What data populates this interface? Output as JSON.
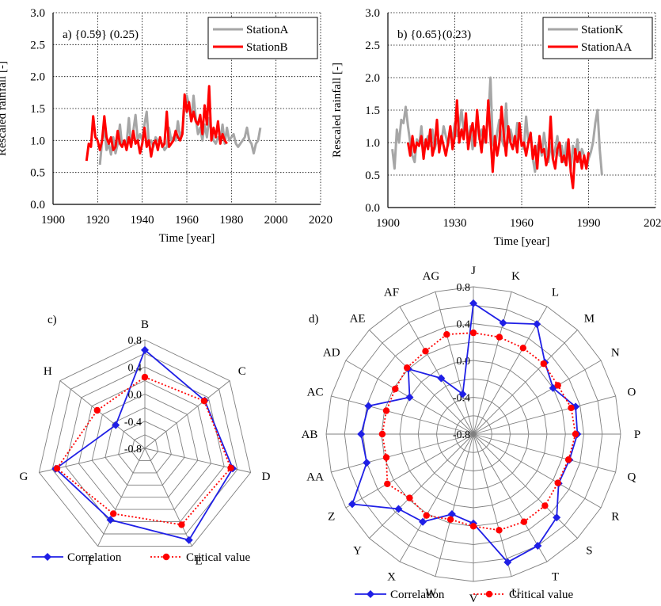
{
  "colors": {
    "gray": "#a6a6a6",
    "red": "#ff0000",
    "blue": "#1f1fe6",
    "black": "#000000"
  },
  "chart_data": [
    {
      "id": "a",
      "type": "line",
      "annotation": "a) {0.59} (0.25)",
      "xlabel": "Time [year]",
      "ylabel": "Rescaled rainfall [-]",
      "xlim": [
        1900,
        2020
      ],
      "ylim": [
        0.0,
        3.0
      ],
      "xticks": [
        "1900",
        "1920",
        "1940",
        "1960",
        "1980",
        "2000",
        "2020"
      ],
      "yticks": [
        "0.0",
        "0.5",
        "1.0",
        "1.5",
        "2.0",
        "2.5",
        "3.0"
      ],
      "grid": true,
      "legend": "top-right",
      "series": [
        {
          "name": "StationA",
          "color": "#a6a6a6",
          "x": [
            1921,
            1922,
            1923,
            1924,
            1925,
            1926,
            1927,
            1928,
            1929,
            1930,
            1931,
            1932,
            1933,
            1934,
            1935,
            1936,
            1937,
            1938,
            1939,
            1940,
            1941,
            1942,
            1943,
            1944,
            1945,
            1946,
            1947,
            1948,
            1949,
            1950,
            1951,
            1952,
            1953,
            1954,
            1955,
            1956,
            1957,
            1958,
            1959,
            1960,
            1961,
            1962,
            1963,
            1964,
            1965,
            1966,
            1967,
            1968,
            1969,
            1970,
            1971,
            1972,
            1973,
            1974,
            1975,
            1976,
            1977,
            1978,
            1979,
            1980,
            1981,
            1982,
            1983,
            1984,
            1985,
            1986,
            1987,
            1988,
            1989,
            1990,
            1991,
            1992,
            1993
          ],
          "y": [
            0.62,
            1.0,
            1.2,
            0.85,
            0.95,
            0.78,
            1.05,
            0.8,
            0.95,
            1.25,
            0.9,
            1.0,
            0.95,
            1.35,
            0.9,
            1.15,
            1.4,
            1.0,
            1.1,
            1.0,
            1.25,
            1.45,
            0.95,
            1.0,
            0.9,
            1.05,
            1.0,
            1.0,
            0.95,
            0.85,
            0.9,
            1.2,
            1.0,
            1.05,
            1.0,
            1.3,
            1.05,
            1.15,
            1.55,
            1.7,
            1.55,
            1.3,
            1.7,
            1.35,
            1.1,
            1.2,
            1.0,
            1.25,
            1.05,
            1.35,
            1.15,
            1.0,
            0.95,
            1.05,
            1.0,
            1.25,
            0.95,
            1.2,
            1.0,
            1.05,
            1.1,
            0.95,
            0.9,
            0.95,
            1.0,
            1.05,
            1.2,
            1.0,
            0.95,
            0.8,
            0.95,
            1.0,
            1.2
          ]
        },
        {
          "name": "StationB",
          "color": "#ff0000",
          "x": [
            1915,
            1916,
            1917,
            1918,
            1919,
            1920,
            1921,
            1922,
            1923,
            1924,
            1925,
            1926,
            1927,
            1928,
            1929,
            1930,
            1931,
            1932,
            1933,
            1934,
            1935,
            1936,
            1937,
            1938,
            1939,
            1940,
            1941,
            1942,
            1943,
            1944,
            1945,
            1946,
            1947,
            1948,
            1949,
            1950,
            1951,
            1952,
            1953,
            1954,
            1955,
            1956,
            1957,
            1958,
            1959,
            1960,
            1961,
            1962,
            1963,
            1964,
            1965,
            1966,
            1967,
            1968,
            1969,
            1970,
            1971,
            1972,
            1973,
            1974,
            1975,
            1976,
            1977,
            1978
          ],
          "y": [
            0.68,
            0.95,
            0.9,
            1.38,
            1.05,
            1.0,
            0.85,
            1.0,
            1.38,
            1.05,
            0.95,
            1.05,
            0.85,
            0.9,
            1.15,
            0.95,
            0.9,
            1.0,
            0.85,
            1.05,
            0.9,
            1.15,
            0.95,
            1.0,
            0.8,
            0.95,
            1.2,
            0.9,
            1.0,
            0.75,
            0.95,
            1.0,
            0.85,
            1.05,
            0.9,
            0.95,
            1.45,
            0.9,
            0.95,
            1.0,
            1.15,
            1.05,
            1.0,
            1.1,
            1.72,
            1.45,
            1.6,
            1.3,
            1.45,
            1.3,
            1.25,
            1.4,
            1.1,
            1.55,
            1.25,
            1.85,
            1.0,
            1.2,
            1.05,
            1.3,
            0.95,
            1.1,
            1.0,
            0.95
          ]
        }
      ]
    },
    {
      "id": "b",
      "type": "line",
      "annotation": "b) {0.65}(0.23)",
      "xlabel": "Time [year]",
      "ylabel": "Rescaled rainfall [-]",
      "xlim": [
        1900,
        2020
      ],
      "ylim": [
        0.0,
        3.0
      ],
      "xticks": [
        "1900",
        "1930",
        "1960",
        "1990",
        "2020"
      ],
      "yticks": [
        "0.0",
        "0.5",
        "1.0",
        "1.5",
        "2.0",
        "2.5",
        "3.0"
      ],
      "grid": true,
      "legend": "top-right",
      "series": [
        {
          "name": "StationK",
          "color": "#a6a6a6",
          "x": [
            1902,
            1903,
            1904,
            1905,
            1906,
            1907,
            1908,
            1909,
            1910,
            1911,
            1912,
            1913,
            1914,
            1915,
            1916,
            1917,
            1918,
            1919,
            1920,
            1921,
            1922,
            1923,
            1924,
            1925,
            1926,
            1927,
            1928,
            1929,
            1930,
            1931,
            1932,
            1933,
            1934,
            1935,
            1936,
            1937,
            1938,
            1939,
            1940,
            1941,
            1942,
            1943,
            1944,
            1945,
            1946,
            1947,
            1948,
            1949,
            1950,
            1951,
            1952,
            1953,
            1954,
            1955,
            1956,
            1957,
            1958,
            1959,
            1960,
            1961,
            1962,
            1963,
            1964,
            1965,
            1966,
            1967,
            1968,
            1969,
            1970,
            1971,
            1972,
            1973,
            1974,
            1975,
            1976,
            1977,
            1978,
            1979,
            1980,
            1981,
            1982,
            1983,
            1984,
            1985,
            1986,
            1987,
            1988,
            1989,
            1990,
            1991,
            1992,
            1993,
            1994,
            1995,
            1996
          ],
          "y": [
            0.9,
            0.6,
            1.2,
            1.0,
            1.35,
            1.3,
            1.55,
            1.25,
            1.0,
            0.8,
            0.7,
            1.05,
            0.95,
            1.25,
            0.85,
            1.0,
            1.1,
            0.95,
            1.2,
            0.9,
            1.05,
            0.95,
            1.0,
            1.25,
            1.1,
            0.95,
            1.2,
            1.05,
            1.3,
            1.1,
            1.25,
            1.5,
            1.15,
            1.3,
            1.0,
            1.25,
            0.9,
            1.1,
            1.35,
            1.05,
            1.2,
            1.0,
            1.15,
            1.35,
            2.0,
            1.0,
            0.9,
            1.15,
            1.35,
            1.05,
            0.95,
            1.6,
            1.0,
            1.2,
            1.05,
            0.95,
            1.3,
            1.1,
            1.0,
            0.9,
            1.4,
            1.0,
            1.15,
            0.75,
            0.55,
            0.95,
            1.0,
            0.8,
            1.15,
            0.9,
            0.7,
            1.0,
            0.75,
            0.9,
            1.1,
            0.8,
            0.95,
            0.7,
            1.0,
            0.85,
            0.6,
            0.95,
            0.8,
            1.05,
            0.7,
            0.9,
            0.8,
            0.6,
            0.75,
            0.85,
            1.0,
            1.3,
            1.5,
            0.9,
            0.5
          ]
        },
        {
          "name": "StationAA",
          "color": "#ff0000",
          "x": [
            1909,
            1910,
            1911,
            1912,
            1913,
            1914,
            1915,
            1916,
            1917,
            1918,
            1919,
            1920,
            1921,
            1922,
            1923,
            1924,
            1925,
            1926,
            1927,
            1928,
            1929,
            1930,
            1931,
            1932,
            1933,
            1934,
            1935,
            1936,
            1937,
            1938,
            1939,
            1940,
            1941,
            1942,
            1943,
            1944,
            1945,
            1946,
            1947,
            1948,
            1949,
            1950,
            1951,
            1952,
            1953,
            1954,
            1955,
            1956,
            1957,
            1958,
            1959,
            1960,
            1961,
            1962,
            1963,
            1964,
            1965,
            1966,
            1967,
            1968,
            1969,
            1970,
            1971,
            1972,
            1973,
            1974,
            1975,
            1976,
            1977,
            1978,
            1979,
            1980,
            1981,
            1982,
            1983,
            1984,
            1985,
            1986,
            1987,
            1988,
            1989,
            1990
          ],
          "y": [
            1.0,
            0.8,
            1.1,
            0.85,
            1.0,
            0.95,
            1.1,
            0.75,
            1.05,
            0.9,
            1.2,
            0.8,
            0.95,
            1.35,
            0.85,
            1.1,
            0.95,
            0.8,
            1.0,
            1.25,
            0.9,
            1.1,
            1.65,
            1.0,
            1.2,
            1.05,
            1.45,
            0.9,
            1.15,
            1.3,
            0.95,
            1.5,
            1.1,
            0.85,
            1.25,
            1.0,
            1.65,
            1.1,
            0.55,
            1.1,
            0.8,
            1.0,
            1.55,
            1.1,
            0.8,
            1.25,
            1.0,
            0.9,
            1.1,
            0.85,
            1.3,
            0.95,
            1.0,
            0.8,
            1.0,
            1.15,
            0.75,
            0.95,
            0.6,
            1.1,
            0.85,
            0.9,
            0.65,
            0.8,
            1.4,
            0.75,
            0.6,
            0.9,
            1.0,
            0.7,
            0.8,
            0.65,
            1.05,
            0.55,
            0.3,
            0.9,
            0.7,
            0.85,
            0.6,
            0.8,
            0.6,
            0.85
          ]
        }
      ]
    },
    {
      "id": "c",
      "type": "radar",
      "annotation": "c)",
      "rlim": [
        -0.8,
        0.8
      ],
      "rticks": [
        "0.8",
        "0.4",
        "0.0",
        "-0.4",
        "-0.8"
      ],
      "rtick_values": [
        0.8,
        0.4,
        0.0,
        -0.4,
        -0.8
      ],
      "categories": [
        "B",
        "C",
        "D",
        "E",
        "F",
        "G",
        "H"
      ],
      "legend": "bottom",
      "series": [
        {
          "name": "Correlation",
          "color": "#1f1fe6",
          "marker": "diamond",
          "line": "solid",
          "values": [
            0.65,
            0.33,
            0.53,
            0.7,
            0.37,
            0.55,
            -0.25
          ]
        },
        {
          "name": "Critical value",
          "color": "#ff0000",
          "marker": "circle",
          "line": "dotted",
          "values": [
            0.25,
            0.32,
            0.5,
            0.45,
            0.27,
            0.53,
            0.1
          ]
        }
      ]
    },
    {
      "id": "d",
      "type": "radar",
      "annotation": "d)",
      "rlim": [
        -0.8,
        0.8
      ],
      "rticks": [
        "0.8",
        "0.4",
        "0.0",
        "-0.4",
        "-0.8"
      ],
      "rtick_values": [
        0.8,
        0.4,
        0.0,
        -0.4,
        -0.8
      ],
      "categories": [
        "J",
        "K",
        "L",
        "M",
        "N",
        "O",
        "P",
        "Q",
        "R",
        "S",
        "T",
        "U",
        "V",
        "W",
        "X",
        "Y",
        "Z",
        "AA",
        "AB",
        "AC",
        "AD",
        "AE",
        "AF",
        "AG"
      ],
      "legend": "bottom",
      "series": [
        {
          "name": "Correlation",
          "color": "#1f1fe6",
          "marker": "diamond",
          "line": "solid",
          "values": [
            0.62,
            0.45,
            0.58,
            0.3,
            0.2,
            0.35,
            0.33,
            0.28,
            0.27,
            0.48,
            0.6,
            0.64,
            0.17,
            0.1,
            0.3,
            0.35,
            0.72,
            0.4,
            0.42,
            0.38,
            0.0,
            0.2,
            -0.1,
            -0.35
          ]
        },
        {
          "name": "Critical value",
          "color": "#ff0000",
          "marker": "circle",
          "line": "dotted",
          "values": [
            0.3,
            0.29,
            0.28,
            0.28,
            0.26,
            0.3,
            0.31,
            0.27,
            0.26,
            0.3,
            0.3,
            0.28,
            0.2,
            0.16,
            0.22,
            0.18,
            0.28,
            0.18,
            0.19,
            0.18,
            0.18,
            0.22,
            0.24,
            0.32
          ]
        }
      ]
    }
  ]
}
